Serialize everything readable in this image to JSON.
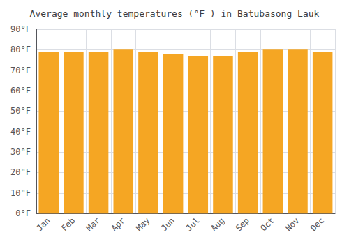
{
  "chart_data": {
    "type": "bar",
    "title": "Average monthly temperatures (°F ) in Batubasong Lauk",
    "categories": [
      "Jan",
      "Feb",
      "Mar",
      "Apr",
      "May",
      "Jun",
      "Jul",
      "Aug",
      "Sep",
      "Oct",
      "Nov",
      "Dec"
    ],
    "values": [
      79,
      79,
      79,
      80,
      79,
      78,
      77,
      77,
      79,
      80,
      80,
      79
    ],
    "color": "#F5A623",
    "ylim": [
      0,
      90
    ],
    "yticks": [
      {
        "value": 0,
        "label": "0°F"
      },
      {
        "value": 10,
        "label": "10°F"
      },
      {
        "value": 20,
        "label": "20°F"
      },
      {
        "value": 30,
        "label": "30°F"
      },
      {
        "value": 40,
        "label": "40°F"
      },
      {
        "value": 50,
        "label": "50°F"
      },
      {
        "value": 60,
        "label": "60°F"
      },
      {
        "value": 70,
        "label": "70°F"
      },
      {
        "value": 80,
        "label": "80°F"
      },
      {
        "value": 90,
        "label": "90°F"
      }
    ],
    "grid": true
  }
}
